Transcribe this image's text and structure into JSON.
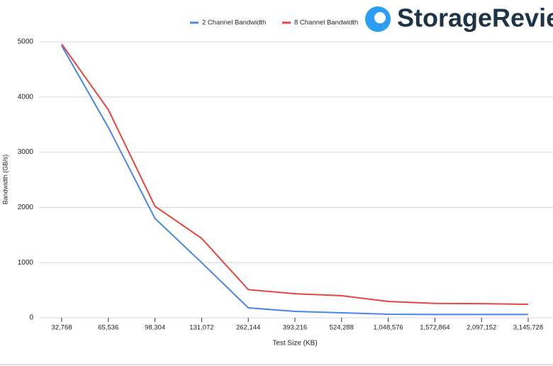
{
  "chart_data": {
    "type": "line",
    "brand": "StorageReview",
    "xlabel": "Test Size (KB)",
    "ylabel": "Bandwidth (GB/s)",
    "categories": [
      "32,768",
      "65,536",
      "98,304",
      "131,072",
      "262,144",
      "393,216",
      "524,288",
      "1,048,576",
      "1,572,864",
      "2,097,152",
      "3,145,728"
    ],
    "series": [
      {
        "name": "2 Channel Bandwidth",
        "color": "#4a86e8",
        "values": [
          4930,
          3450,
          1800,
          1000,
          180,
          115,
          90,
          65,
          60,
          60,
          60
        ]
      },
      {
        "name": "8 Channel Bandwidth",
        "color": "#e8453c",
        "values": [
          4960,
          3770,
          2020,
          1440,
          510,
          435,
          400,
          295,
          260,
          255,
          245
        ]
      }
    ],
    "ylim": [
      0,
      5000
    ],
    "yticks": [
      0,
      1000,
      2000,
      3000,
      4000,
      5000
    ],
    "grid": true,
    "legend": "top"
  }
}
